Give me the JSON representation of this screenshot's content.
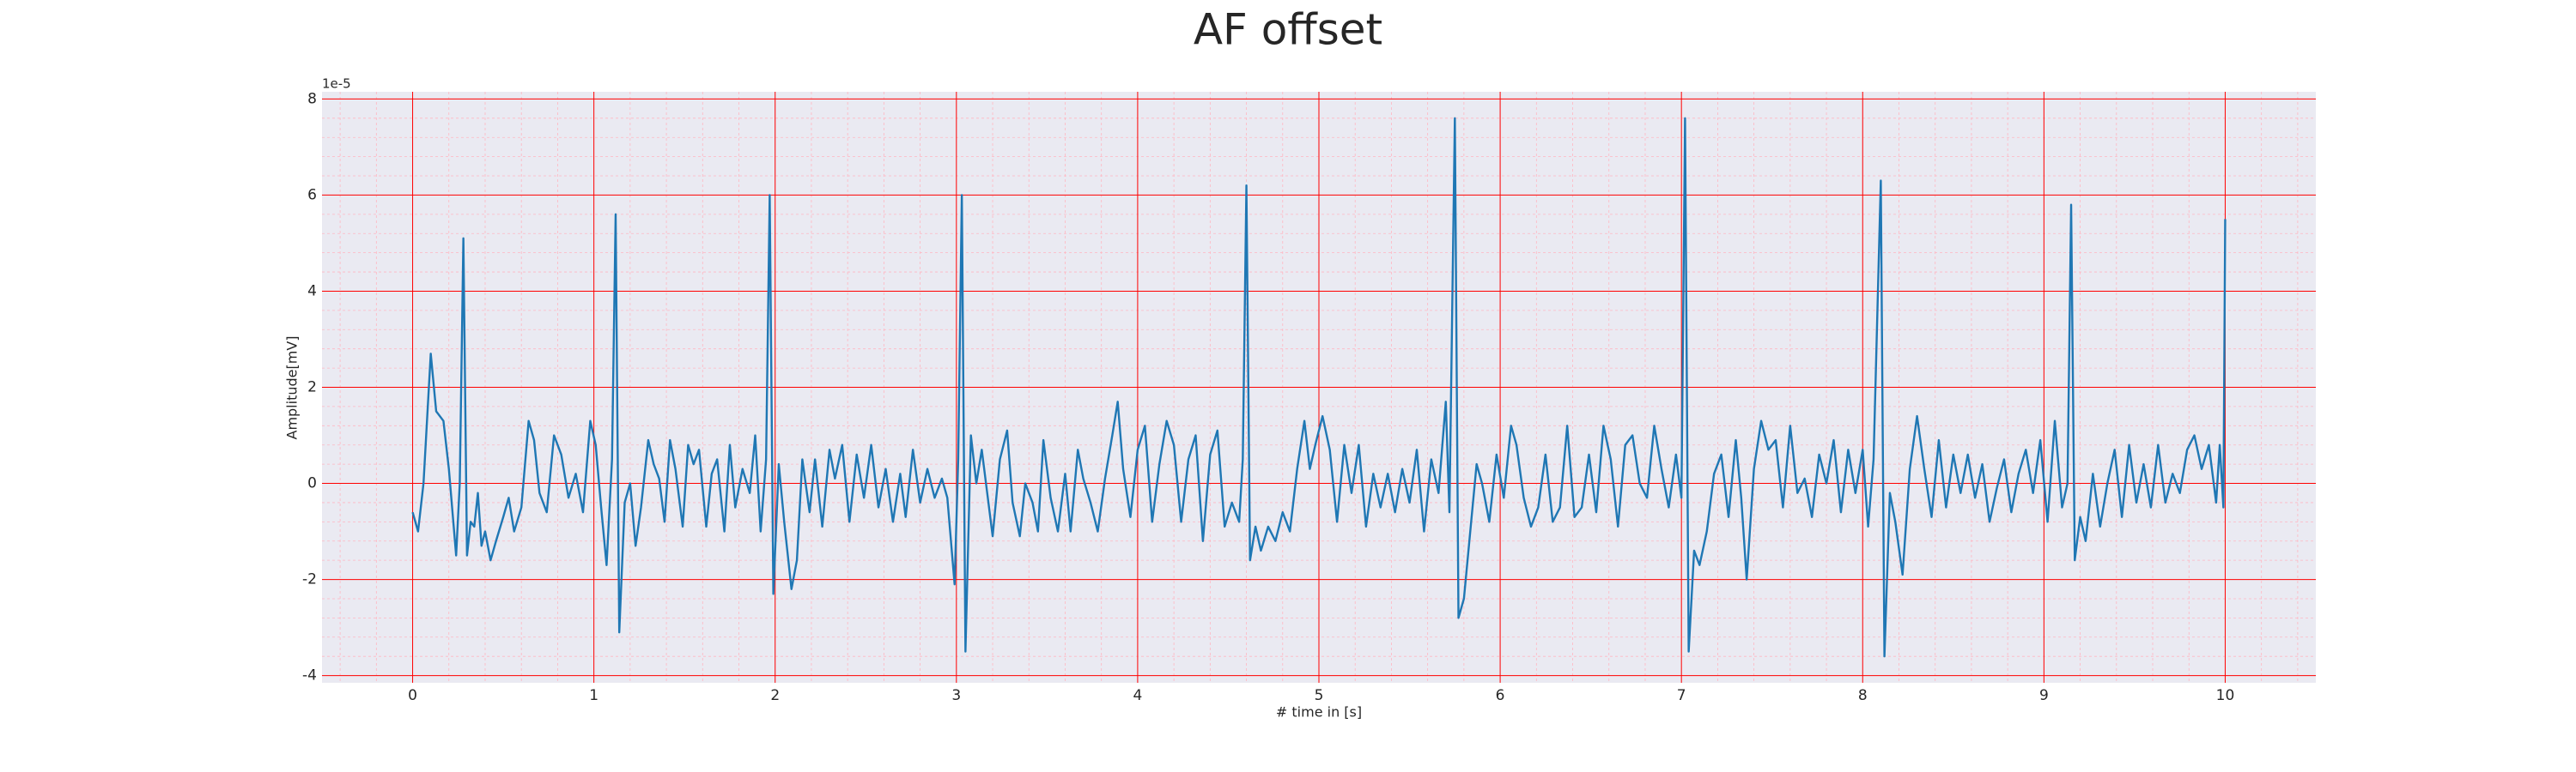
{
  "chart_data": {
    "type": "line",
    "title": "AF offset",
    "xlabel": "# time in [s]",
    "ylabel": "Amplitude[mV]",
    "y_offset_label": "1e-5",
    "color": "#1f77b4",
    "background": "#eaeaf2",
    "grid": true,
    "minor_grid": true,
    "grid_color": "#ff0000",
    "minor_grid_color": "#ffb6c1",
    "xlim": [
      -0.5,
      10.5
    ],
    "xticks": [
      0,
      1,
      2,
      3,
      4,
      5,
      6,
      7,
      8,
      9,
      10
    ],
    "ylim": [
      -4.15,
      8.15
    ],
    "yticks": [
      -4,
      -2,
      0,
      2,
      4,
      6,
      8
    ],
    "x": [
      0,
      0.03,
      0.06,
      0.1,
      0.13,
      0.17,
      0.2,
      0.24,
      0.26,
      0.28,
      0.3,
      0.32,
      0.34,
      0.36,
      0.38,
      0.4,
      0.43,
      0.46,
      0.5,
      0.53,
      0.56,
      0.6,
      0.64,
      0.67,
      0.7,
      0.74,
      0.78,
      0.82,
      0.86,
      0.9,
      0.94,
      0.98,
      1.01,
      1.04,
      1.07,
      1.1,
      1.12,
      1.14,
      1.17,
      1.2,
      1.23,
      1.26,
      1.3,
      1.33,
      1.36,
      1.39,
      1.42,
      1.45,
      1.49,
      1.52,
      1.55,
      1.58,
      1.62,
      1.65,
      1.68,
      1.72,
      1.75,
      1.78,
      1.82,
      1.86,
      1.89,
      1.92,
      1.95,
      1.97,
      1.99,
      2.02,
      2.05,
      2.09,
      2.12,
      2.15,
      2.19,
      2.22,
      2.26,
      2.3,
      2.33,
      2.37,
      2.41,
      2.45,
      2.49,
      2.53,
      2.57,
      2.61,
      2.65,
      2.69,
      2.72,
      2.76,
      2.8,
      2.84,
      2.88,
      2.92,
      2.95,
      2.99,
      3.01,
      3.03,
      3.05,
      3.08,
      3.11,
      3.14,
      3.17,
      3.2,
      3.24,
      3.28,
      3.31,
      3.35,
      3.38,
      3.42,
      3.45,
      3.48,
      3.52,
      3.56,
      3.6,
      3.63,
      3.67,
      3.7,
      3.74,
      3.78,
      3.82,
      3.86,
      3.89,
      3.92,
      3.96,
      4.0,
      4.04,
      4.08,
      4.12,
      4.16,
      4.2,
      4.24,
      4.28,
      4.32,
      4.36,
      4.4,
      4.44,
      4.48,
      4.52,
      4.56,
      4.58,
      4.6,
      4.62,
      4.65,
      4.68,
      4.72,
      4.76,
      4.8,
      4.84,
      4.88,
      4.92,
      4.95,
      4.98,
      5.02,
      5.06,
      5.1,
      5.14,
      5.18,
      5.22,
      5.26,
      5.3,
      5.34,
      5.38,
      5.42,
      5.46,
      5.5,
      5.54,
      5.58,
      5.62,
      5.66,
      5.7,
      5.72,
      5.75,
      5.77,
      5.8,
      5.83,
      5.87,
      5.9,
      5.94,
      5.98,
      6.02,
      6.06,
      6.09,
      6.13,
      6.17,
      6.21,
      6.25,
      6.29,
      6.33,
      6.37,
      6.41,
      6.45,
      6.49,
      6.53,
      6.57,
      6.61,
      6.65,
      6.69,
      6.73,
      6.77,
      6.81,
      6.85,
      6.89,
      6.93,
      6.97,
      7.0,
      7.02,
      7.04,
      7.07,
      7.1,
      7.14,
      7.18,
      7.22,
      7.26,
      7.3,
      7.33,
      7.36,
      7.4,
      7.44,
      7.48,
      7.52,
      7.56,
      7.6,
      7.64,
      7.68,
      7.72,
      7.76,
      7.8,
      7.84,
      7.88,
      7.92,
      7.96,
      8.0,
      8.03,
      8.06,
      8.1,
      8.12,
      8.15,
      8.18,
      8.22,
      8.26,
      8.3,
      8.34,
      8.38,
      8.42,
      8.46,
      8.5,
      8.54,
      8.58,
      8.62,
      8.66,
      8.7,
      8.74,
      8.78,
      8.82,
      8.86,
      8.9,
      8.94,
      8.98,
      9.02,
      9.06,
      9.1,
      9.13,
      9.15,
      9.17,
      9.2,
      9.23,
      9.27,
      9.31,
      9.35,
      9.39,
      9.43,
      9.47,
      9.51,
      9.55,
      9.59,
      9.63,
      9.67,
      9.71,
      9.75,
      9.79,
      9.83,
      9.87,
      9.91,
      9.95,
      9.97,
      9.99,
      10
    ],
    "values": [
      -0.6,
      -1.0,
      0,
      2.7,
      1.5,
      1.3,
      0.3,
      -1.5,
      0,
      5.1,
      -1.5,
      -0.8,
      -0.9,
      -0.2,
      -1.3,
      -1.0,
      -1.6,
      -1.2,
      -0.7,
      -0.3,
      -1.0,
      -0.5,
      1.3,
      0.9,
      -0.2,
      -0.6,
      1.0,
      0.6,
      -0.3,
      0.2,
      -0.6,
      1.3,
      0.8,
      -0.5,
      -1.7,
      0.5,
      5.6,
      -3.1,
      -0.4,
      0,
      -1.3,
      -0.5,
      0.9,
      0.4,
      0.1,
      -0.8,
      0.9,
      0.3,
      -0.9,
      0.8,
      0.4,
      0.7,
      -0.9,
      0.2,
      0.5,
      -1.0,
      0.8,
      -0.5,
      0.3,
      -0.2,
      1.0,
      -1.0,
      0.5,
      6.0,
      -2.3,
      0.4,
      -0.8,
      -2.2,
      -1.6,
      0.5,
      -0.6,
      0.5,
      -0.9,
      0.7,
      0.1,
      0.8,
      -0.8,
      0.6,
      -0.3,
      0.8,
      -0.5,
      0.3,
      -0.8,
      0.2,
      -0.7,
      0.7,
      -0.4,
      0.3,
      -0.3,
      0.1,
      -0.3,
      -2.1,
      0.5,
      6.0,
      -3.5,
      1.0,
      0,
      0.7,
      -0.2,
      -1.1,
      0.5,
      1.1,
      -0.4,
      -1.1,
      0,
      -0.4,
      -1.0,
      0.9,
      -0.3,
      -1.0,
      0.2,
      -1.0,
      0.7,
      0.1,
      -0.4,
      -1.0,
      0.1,
      1.0,
      1.7,
      0.3,
      -0.7,
      0.7,
      1.2,
      -0.8,
      0.4,
      1.3,
      0.8,
      -0.8,
      0.5,
      1.0,
      -1.2,
      0.6,
      1.1,
      -0.9,
      -0.4,
      -0.8,
      0.5,
      6.2,
      -1.6,
      -0.9,
      -1.4,
      -0.9,
      -1.2,
      -0.6,
      -1.0,
      0.3,
      1.3,
      0.3,
      0.8,
      1.4,
      0.7,
      -0.8,
      0.8,
      -0.2,
      0.8,
      -0.9,
      0.2,
      -0.5,
      0.2,
      -0.6,
      0.3,
      -0.4,
      0.7,
      -1.0,
      0.5,
      -0.2,
      1.7,
      -0.6,
      7.6,
      -2.8,
      -2.4,
      -1.2,
      0.4,
      0,
      -0.8,
      0.6,
      -0.3,
      1.2,
      0.8,
      -0.3,
      -0.9,
      -0.5,
      0.6,
      -0.8,
      -0.5,
      1.2,
      -0.7,
      -0.5,
      0.6,
      -0.6,
      1.2,
      0.5,
      -0.9,
      0.8,
      1.0,
      0,
      -0.3,
      1.2,
      0.3,
      -0.5,
      0.6,
      -0.3,
      7.6,
      -3.5,
      -1.4,
      -1.7,
      -1.0,
      0.2,
      0.6,
      -0.7,
      0.9,
      -0.3,
      -2.0,
      0.3,
      1.3,
      0.7,
      0.9,
      -0.5,
      1.2,
      -0.2,
      0.1,
      -0.7,
      0.6,
      0,
      0.9,
      -0.6,
      0.7,
      -0.2,
      0.7,
      -0.9,
      0.5,
      6.3,
      -3.6,
      -0.2,
      -0.8,
      -1.9,
      0.3,
      1.4,
      0.3,
      -0.7,
      0.9,
      -0.5,
      0.6,
      -0.2,
      0.6,
      -0.3,
      0.4,
      -0.8,
      -0.1,
      0.5,
      -0.6,
      0.2,
      0.7,
      -0.2,
      0.9,
      -0.8,
      1.3,
      -0.5,
      0,
      5.8,
      -1.6,
      -0.7,
      -1.2,
      0.2,
      -0.9,
      0,
      0.7,
      -0.7,
      0.8,
      -0.4,
      0.4,
      -0.5,
      0.8,
      -0.4,
      0.2,
      -0.2,
      0.7,
      1.0,
      0.3,
      0.8,
      -0.4,
      0.8,
      -0.5,
      5.5
    ]
  }
}
